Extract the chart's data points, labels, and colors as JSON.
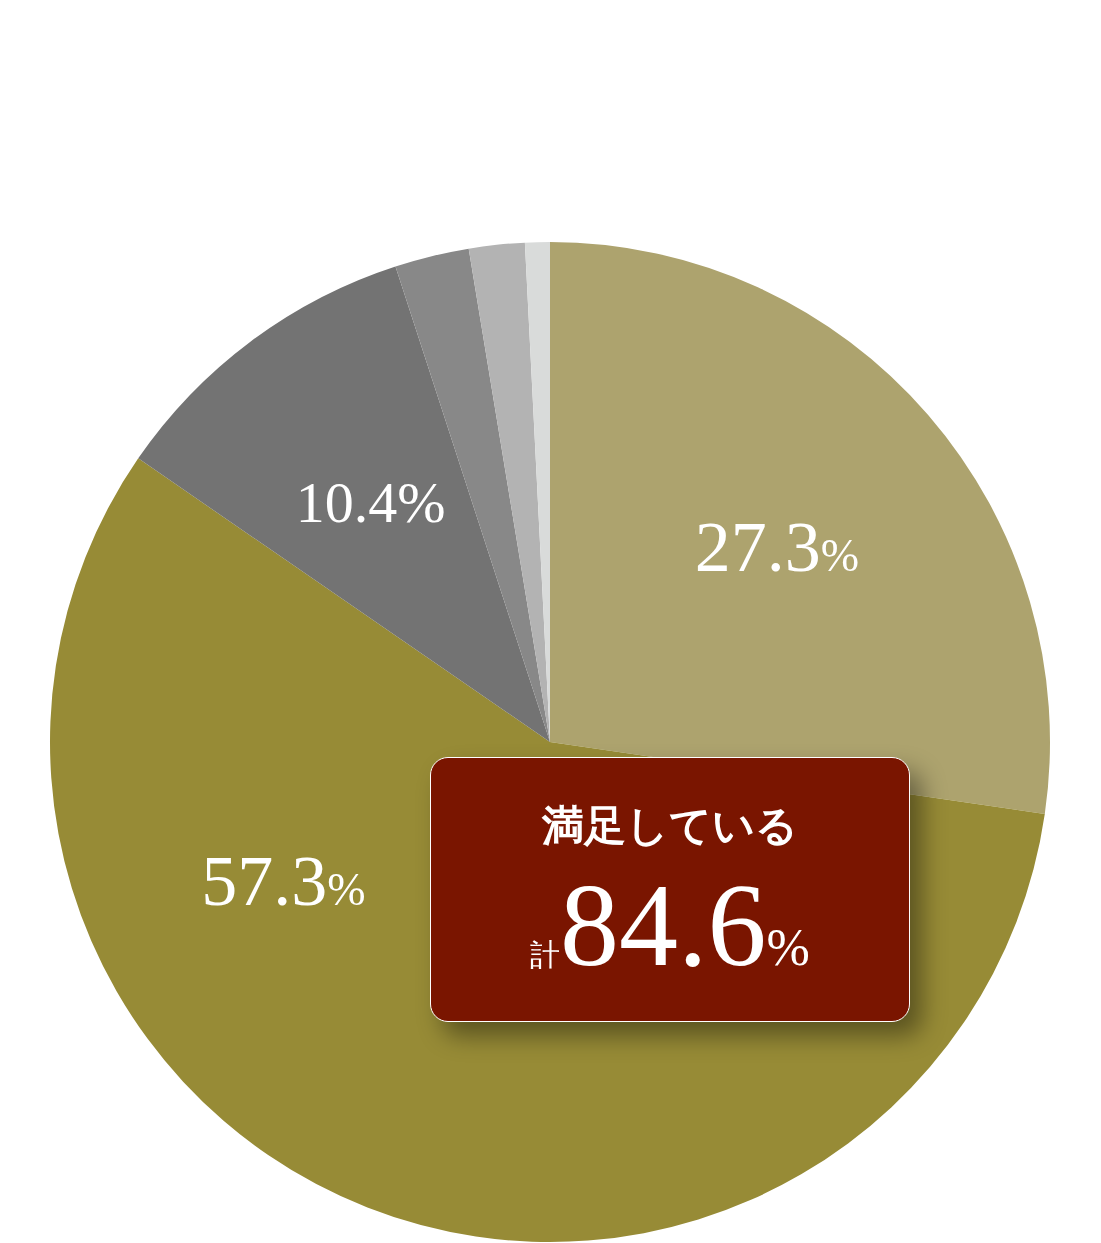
{
  "chart_data": {
    "type": "pie",
    "categories": [
      null,
      null,
      null,
      null,
      null,
      null
    ],
    "values": [
      27.3,
      57.3,
      10.4,
      2.4,
      1.8,
      0.8
    ],
    "colors": [
      "#ada36e",
      "#978b36",
      "#737373",
      "#888888",
      "#b3b3b3",
      "#d9dbda"
    ],
    "value_labels": [
      "27.3%",
      "57.3%",
      "10.4%",
      null,
      null,
      null
    ],
    "legend": false,
    "annotations": [
      "満足している",
      "計84.6%"
    ]
  }
}
